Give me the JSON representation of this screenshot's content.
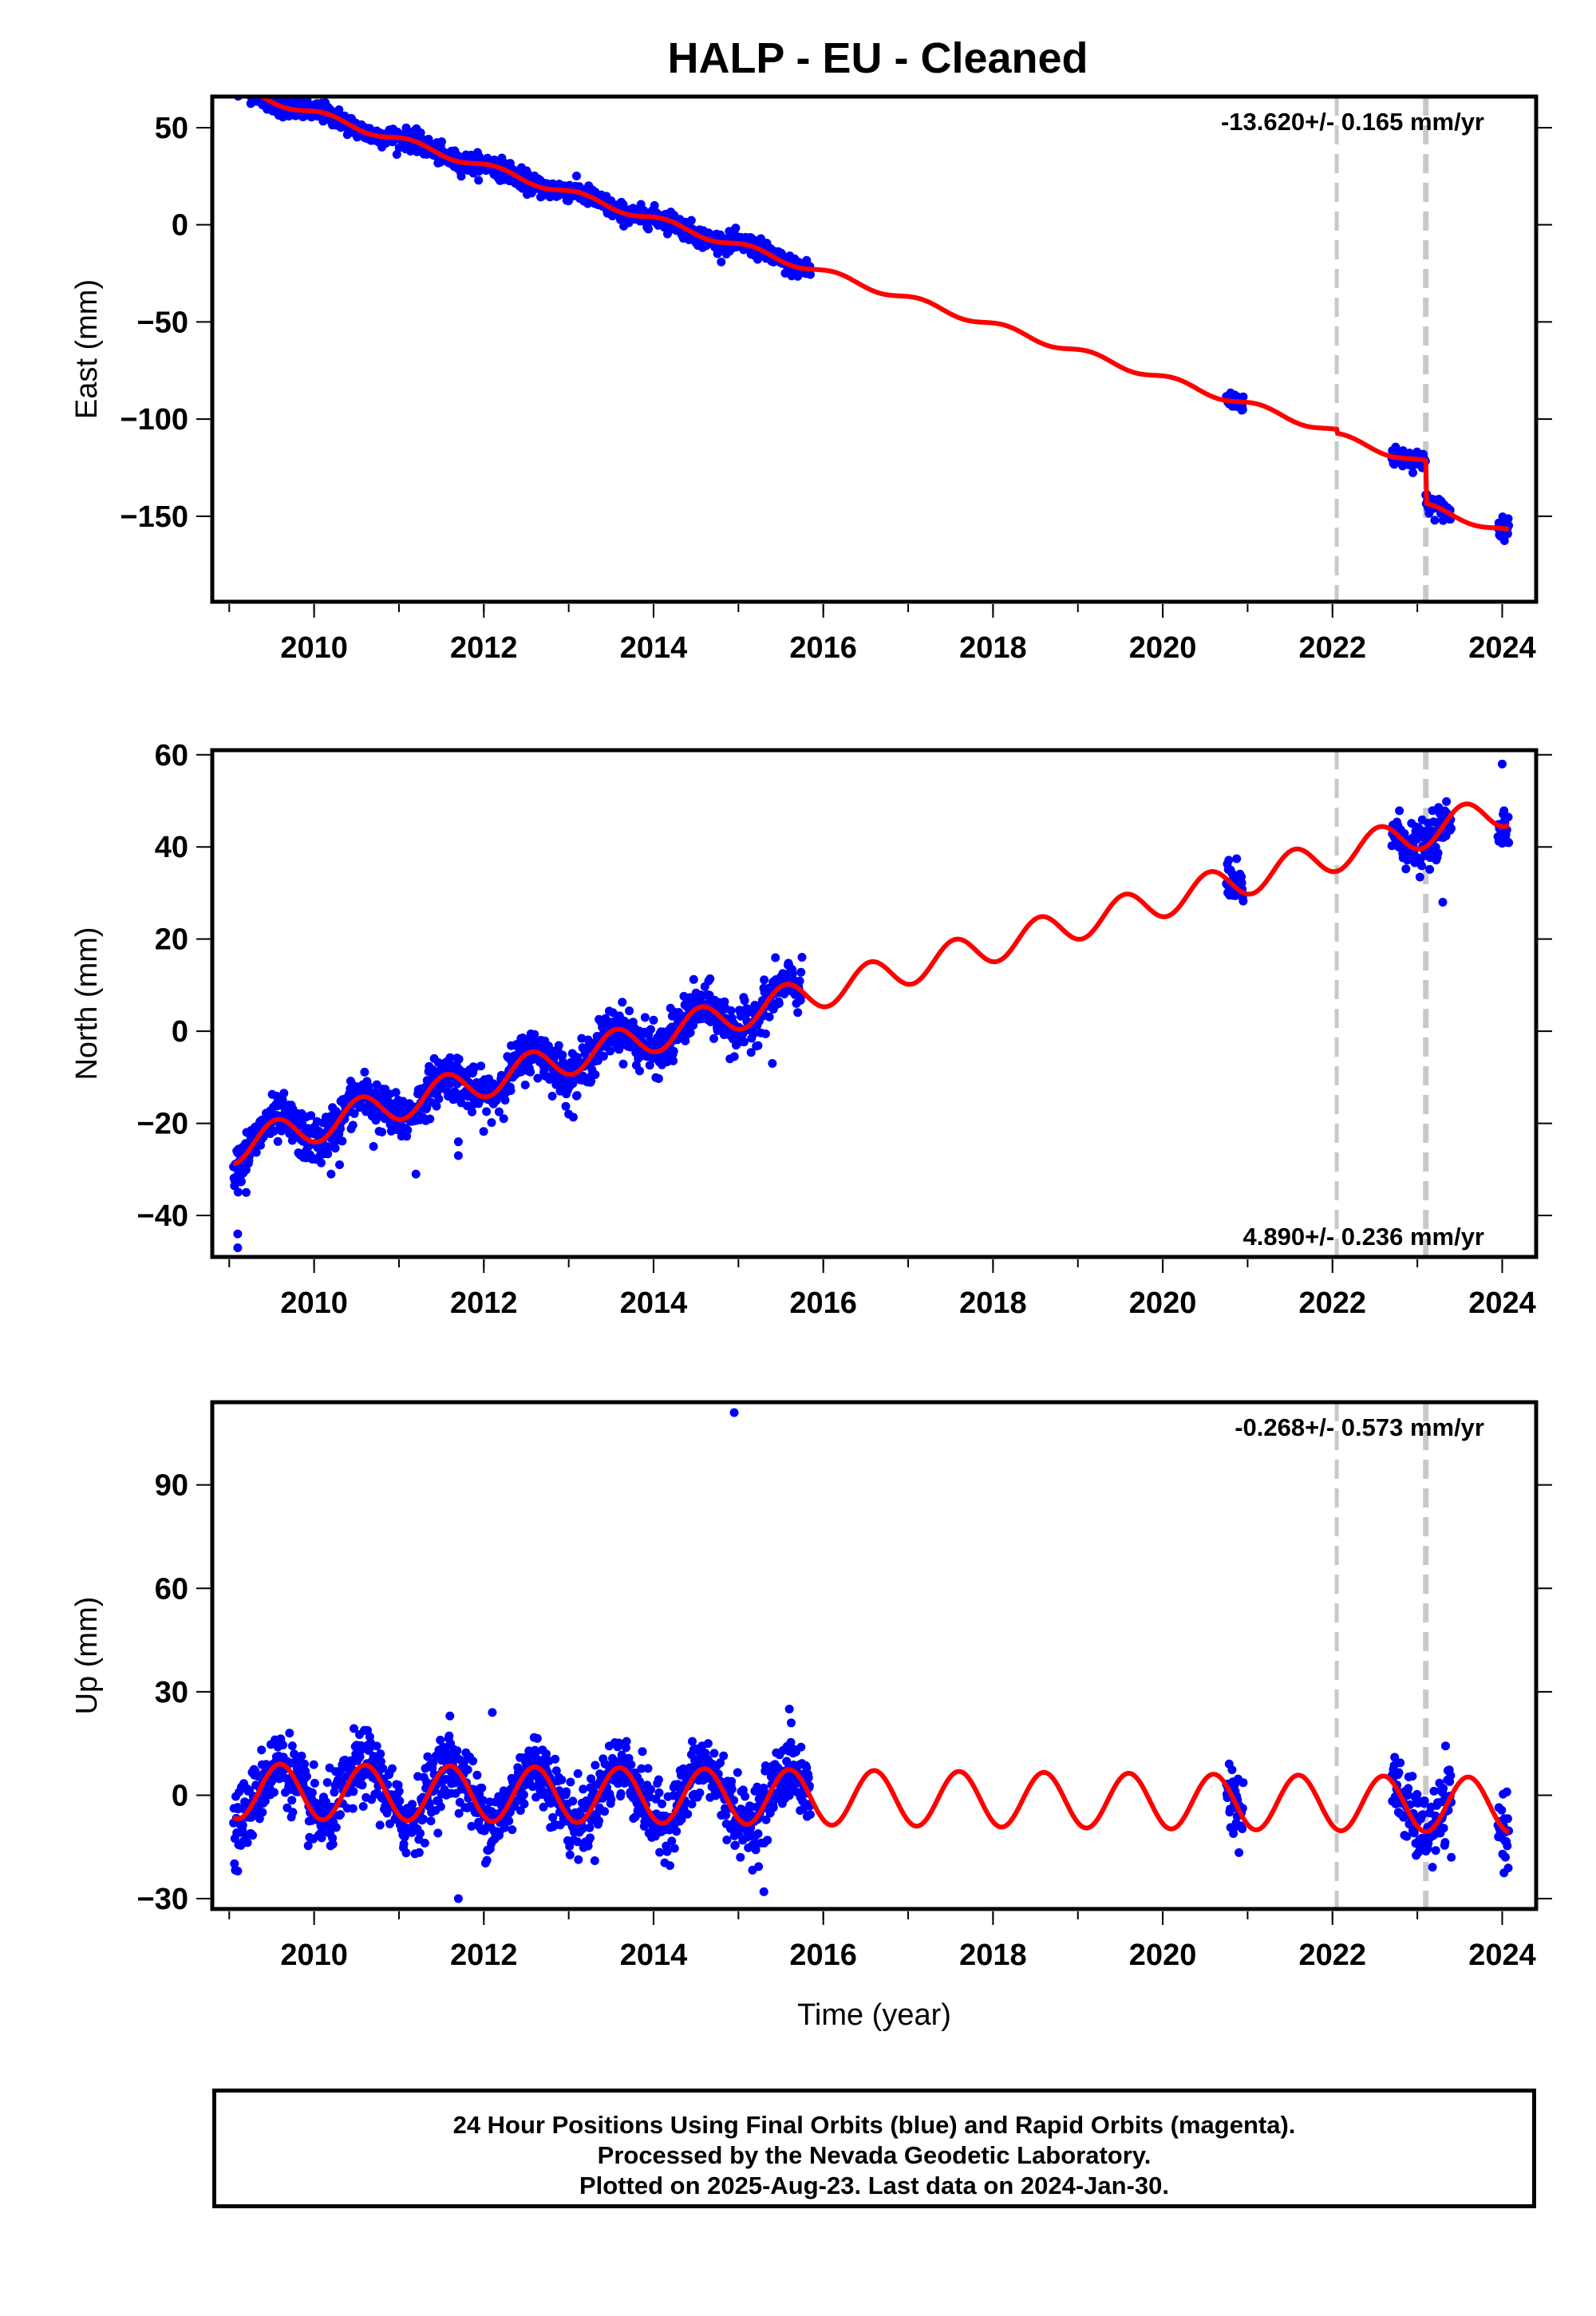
{
  "title": "HALP  - EU - Cleaned",
  "footer": {
    "line1": "24 Hour Positions Using Final Orbits (blue) and Rapid Orbits (magenta).",
    "line2": "Processed by the Nevada Geodetic Laboratory.",
    "line3": "Plotted on 2025-Aug-23. Last data on 2024-Jan-30."
  },
  "colors": {
    "points": "#0000ff",
    "model": "#ff0000",
    "steps": "#c8c8c8"
  },
  "chart_data": [
    {
      "type": "scatter",
      "ylabel": "East (mm)",
      "xlabel": "",
      "xlim": [
        2008.8,
        2024.4
      ],
      "ylim": [
        -194,
        66
      ],
      "xticks": [
        2010,
        2012,
        2014,
        2016,
        2018,
        2020,
        2022,
        2024
      ],
      "yticks": [
        50,
        0,
        -50,
        -100,
        -150
      ],
      "ytick_labels": [
        "50",
        "0",
        "−50",
        "−100",
        "−150"
      ],
      "rate_text": "-13.620+/- 0.165 mm/yr",
      "rate_position": "top-right",
      "step_epochs": [
        2022.05,
        2023.1
      ],
      "data_segments": [
        [
          2009.05,
          2015.85
        ],
        [
          2020.75,
          2020.95
        ],
        [
          2022.7,
          2023.1
        ],
        [
          2023.1,
          2023.4
        ],
        [
          2023.95,
          2024.08
        ]
      ],
      "model": {
        "offset": 71,
        "rate": -13.62,
        "annual_amp": 1.8,
        "annual_phase": 0.15,
        "scatter": 2.5,
        "steps": [
          {
            "epoch": 2022.05,
            "size": -2
          },
          {
            "epoch": 2023.1,
            "size": -22
          }
        ]
      },
      "outliers": []
    },
    {
      "type": "scatter",
      "ylabel": "North (mm)",
      "xlabel": "",
      "xlim": [
        2008.8,
        2024.4
      ],
      "ylim": [
        -49,
        61
      ],
      "xticks": [
        2010,
        2012,
        2014,
        2016,
        2018,
        2020,
        2022,
        2024
      ],
      "yticks": [
        60,
        40,
        20,
        0,
        -20,
        -40
      ],
      "ytick_labels": [
        "60",
        "40",
        "20",
        "0",
        "−20",
        "−40"
      ],
      "rate_text": "4.890+/- 0.236 mm/yr",
      "rate_position": "bottom-right",
      "step_epochs": [
        2022.05,
        2023.1
      ],
      "data_segments": [
        [
          2009.05,
          2015.75
        ],
        [
          2020.75,
          2020.95
        ],
        [
          2022.7,
          2023.4
        ],
        [
          2023.95,
          2024.08
        ]
      ],
      "model": {
        "offset": -25.5,
        "rate": 4.89,
        "annual_amp": 3.6,
        "annual_phase": 0.55,
        "scatter": 2.5,
        "steps": []
      },
      "outliers": [
        [
          2009.1,
          -47
        ],
        [
          2009.1,
          -44
        ],
        [
          2009.2,
          -35
        ],
        [
          2010.2,
          -31
        ],
        [
          2010.3,
          -29
        ],
        [
          2011.2,
          -31
        ],
        [
          2011.7,
          -27
        ],
        [
          2011.7,
          -24
        ],
        [
          2010.7,
          -25
        ],
        [
          2012.9,
          -13
        ],
        [
          2013.0,
          -18
        ],
        [
          2013.9,
          3
        ],
        [
          2014.2,
          5
        ],
        [
          2014.9,
          -6
        ],
        [
          2015.4,
          -7
        ],
        [
          2023.3,
          28
        ],
        [
          2024.0,
          58
        ]
      ]
    },
    {
      "type": "scatter",
      "ylabel": "Up (mm)",
      "xlabel": "Time (year)",
      "xlim": [
        2008.8,
        2024.4
      ],
      "ylim": [
        -33,
        114
      ],
      "xticks": [
        2010,
        2012,
        2014,
        2016,
        2018,
        2020,
        2022,
        2024
      ],
      "yticks": [
        90,
        60,
        30,
        0,
        -30
      ],
      "ytick_labels": [
        "90",
        "60",
        "30",
        "0",
        "−30"
      ],
      "rate_text": "-0.268+/- 0.573 mm/yr",
      "rate_position": "top-right",
      "step_epochs": [
        2022.05,
        2023.1
      ],
      "data_segments": [
        [
          2009.05,
          2015.85
        ],
        [
          2020.75,
          2020.95
        ],
        [
          2022.7,
          2023.4
        ],
        [
          2023.95,
          2024.08
        ]
      ],
      "model": {
        "offset": 1.2,
        "rate": -0.268,
        "annual_amp": 8.0,
        "annual_phase": 0.6,
        "scatter": 5.0,
        "steps": []
      },
      "outliers": [
        [
          2014.95,
          111
        ],
        [
          2011.7,
          -30
        ],
        [
          2015.3,
          -28
        ],
        [
          2009.1,
          -22
        ],
        [
          2011.6,
          23
        ],
        [
          2012.1,
          24
        ],
        [
          2015.6,
          25
        ],
        [
          2023.4,
          -18
        ]
      ]
    }
  ]
}
